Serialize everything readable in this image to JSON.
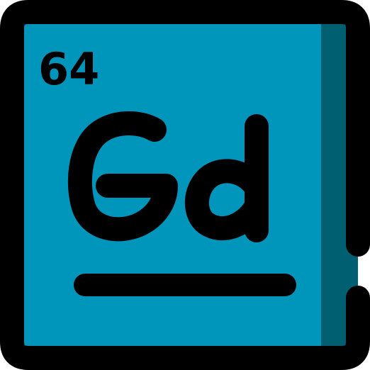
{
  "tile": {
    "atomic_number": "64",
    "symbol": "Gd"
  },
  "colors": {
    "fill": "#0096BB",
    "shade": "#005F71",
    "outline": "#000000"
  }
}
